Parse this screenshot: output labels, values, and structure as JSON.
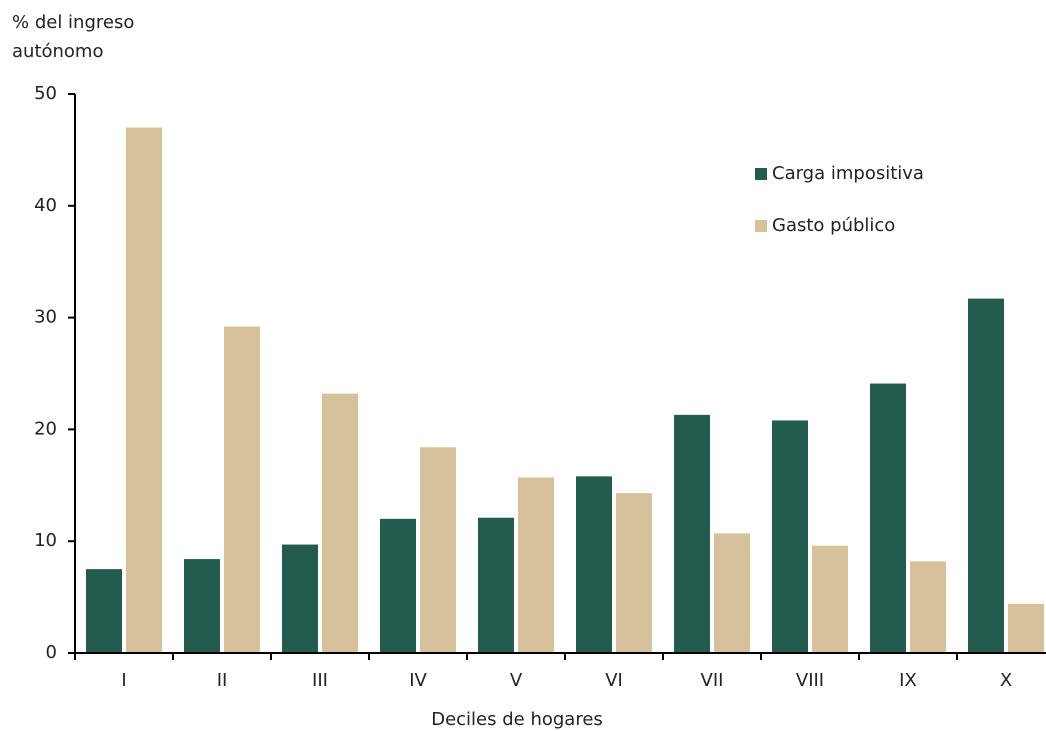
{
  "chart_data": {
    "type": "bar",
    "ylabel": [
      "% del ingreso",
      "autónomo"
    ],
    "xlabel": "Deciles de hogares",
    "categories": [
      "I",
      "II",
      "III",
      "IV",
      "V",
      "VI",
      "VII",
      "VIII",
      "IX",
      "X"
    ],
    "series": [
      {
        "name": "Carga impositiva",
        "color": "#235b4e",
        "values": [
          7.5,
          8.4,
          9.7,
          12.0,
          12.1,
          15.8,
          21.3,
          20.8,
          24.1,
          31.7
        ]
      },
      {
        "name": "Gasto público",
        "color": "#d6c29a",
        "values": [
          47.0,
          29.2,
          23.2,
          18.4,
          15.7,
          14.3,
          10.7,
          9.6,
          8.2,
          4.4
        ]
      }
    ],
    "ylim": [
      0,
      50
    ],
    "yticks": [
      0,
      10,
      20,
      30,
      40,
      50
    ],
    "grid": false,
    "legend": "upper right"
  }
}
